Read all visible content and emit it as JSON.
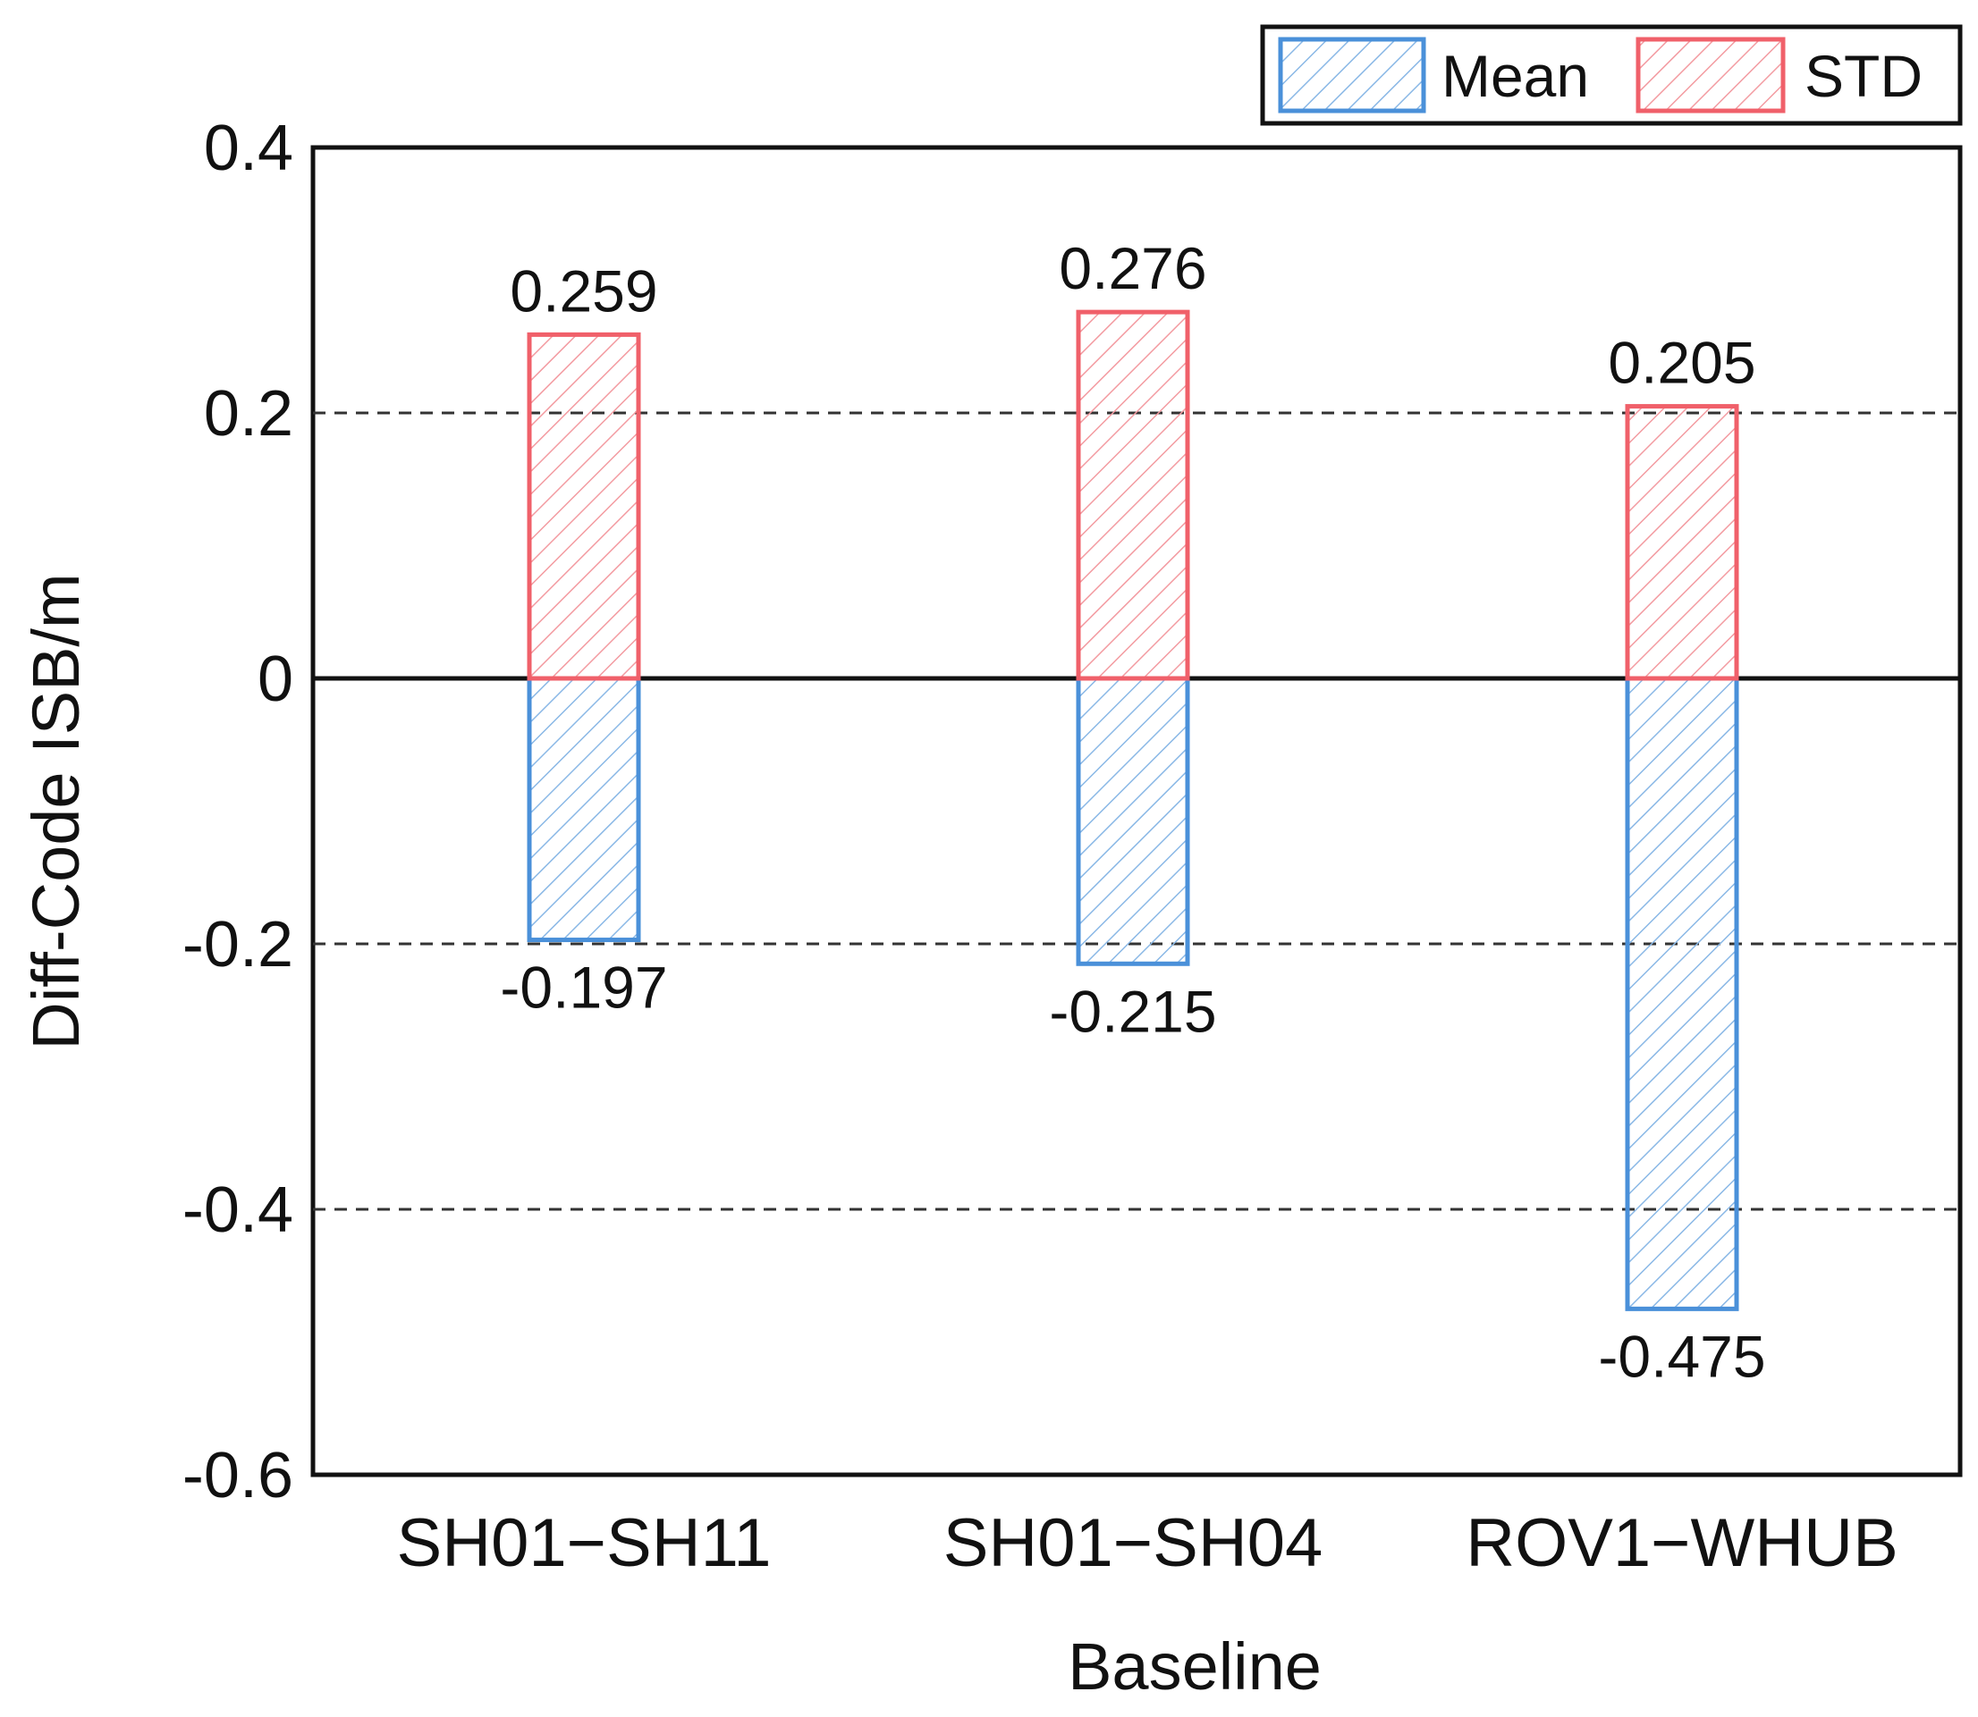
{
  "chart_data": {
    "type": "bar",
    "title": "",
    "xlabel": "Baseline",
    "ylabel": "Diff-Code ISB/m",
    "ylim": [
      -0.6,
      0.4
    ],
    "yticks": [
      0.4,
      0.2,
      0,
      -0.2,
      -0.4,
      -0.6
    ],
    "ytick_labels": [
      "0.4",
      "0.2",
      "0",
      "-0.2",
      "-0.4",
      "-0.6"
    ],
    "grid_values": [
      0.2,
      -0.2,
      -0.4
    ],
    "zero_line": 0,
    "categories": [
      "SH01−SH11",
      "SH01−SH04",
      "ROV1−WHUB"
    ],
    "series": [
      {
        "name": "Mean",
        "color": "#4a90d9",
        "values": [
          -0.197,
          -0.215,
          -0.475
        ],
        "labels": [
          "-0.197",
          "-0.215",
          "-0.475"
        ]
      },
      {
        "name": "STD",
        "color": "#f0606a",
        "values": [
          0.259,
          0.276,
          0.205
        ],
        "labels": [
          "0.259",
          "0.276",
          "0.205"
        ]
      }
    ],
    "legend": {
      "position": "top-right",
      "entries": [
        "Mean",
        "STD"
      ]
    }
  }
}
